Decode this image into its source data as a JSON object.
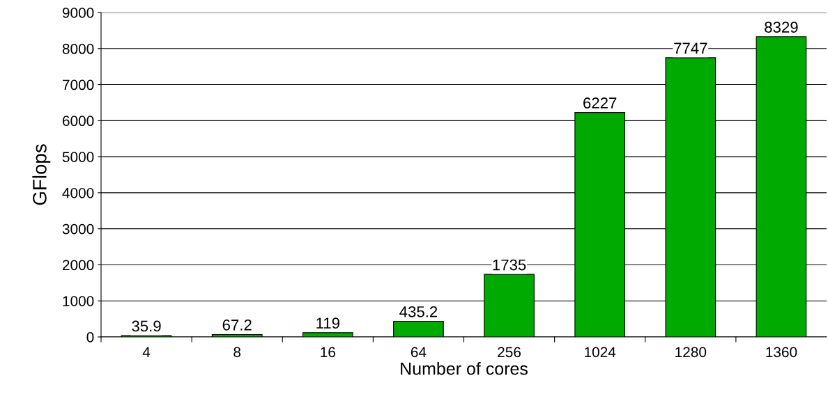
{
  "chart_data": {
    "type": "bar",
    "xlabel": "Number of cores",
    "ylabel": "GFlops",
    "categories": [
      "4",
      "8",
      "16",
      "64",
      "256",
      "1024",
      "1280",
      "1360"
    ],
    "values": [
      35.9,
      67.2,
      119,
      435.2,
      1735,
      6227,
      7747,
      8329
    ],
    "value_labels": [
      "35.9",
      "67.2",
      "119",
      "435.2",
      "1735",
      "6227",
      "7747",
      "8329"
    ],
    "color": "#00aa00",
    "ylim": [
      0,
      9000
    ],
    "yticks": [
      0,
      1000,
      2000,
      3000,
      4000,
      5000,
      6000,
      7000,
      8000,
      9000
    ],
    "grid": "y",
    "legend": false
  }
}
